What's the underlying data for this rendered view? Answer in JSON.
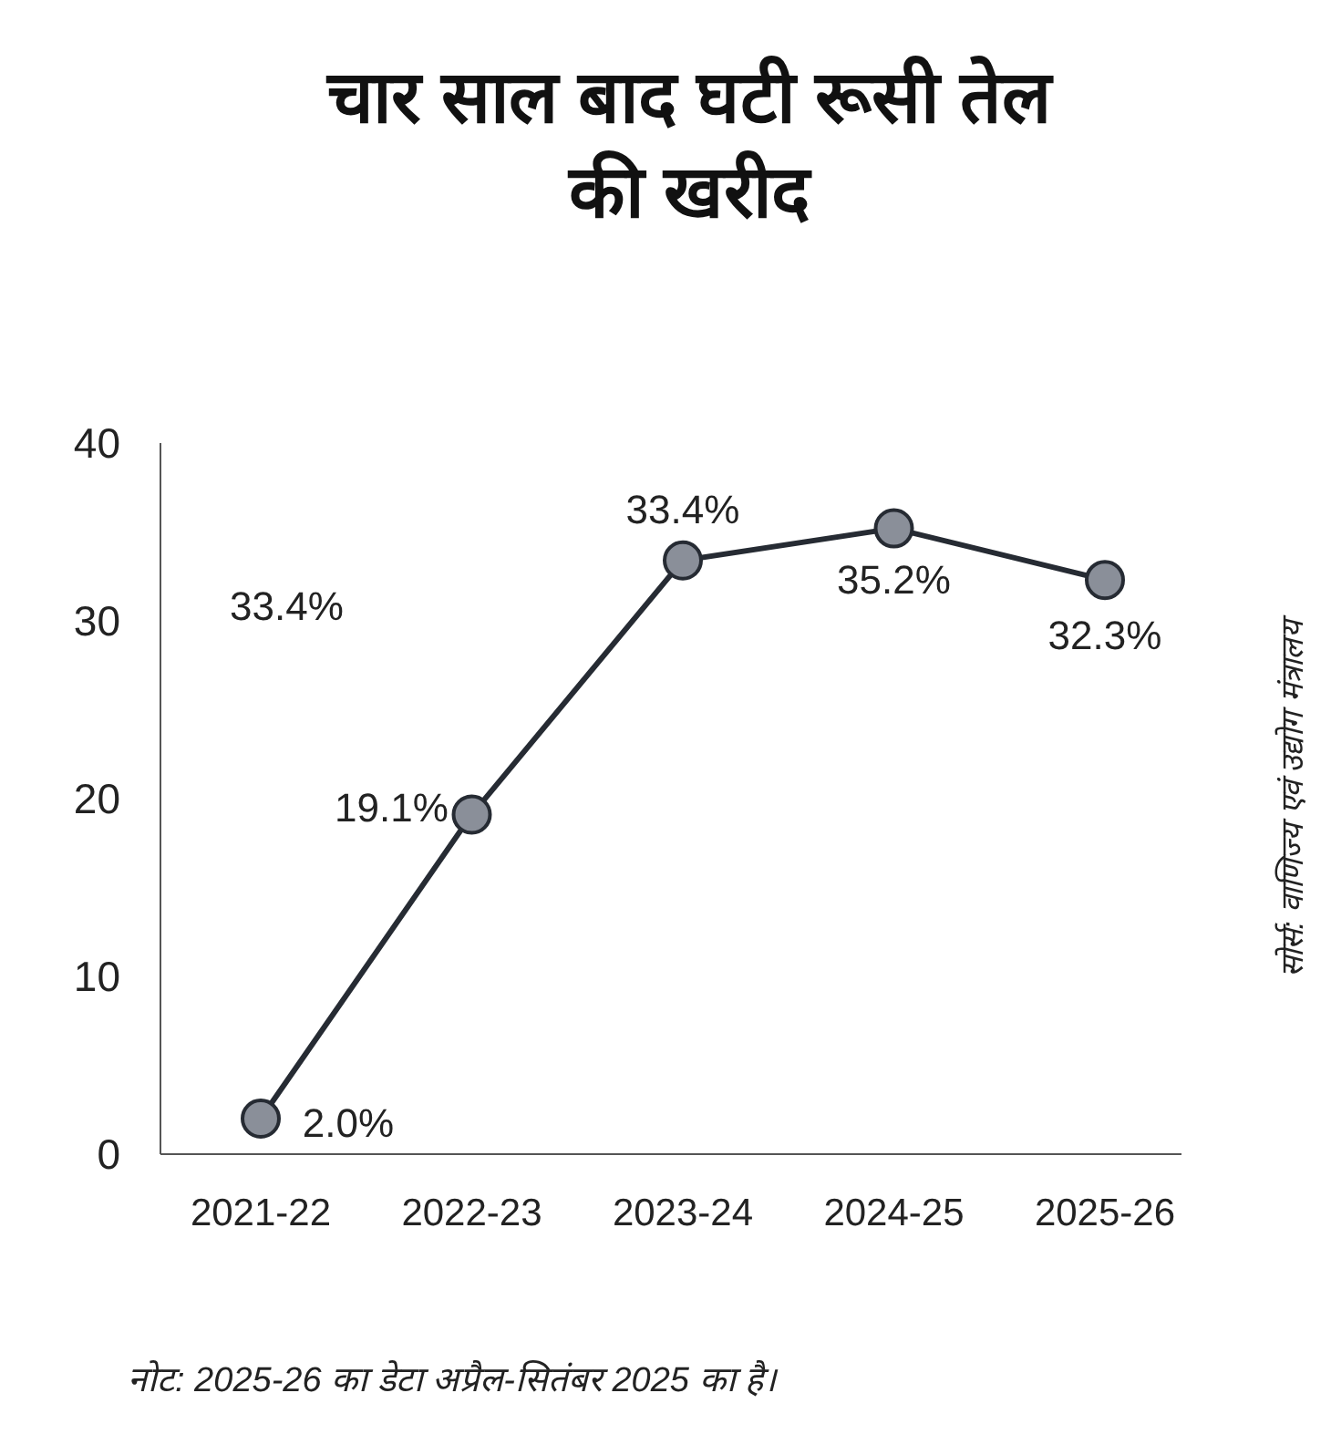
{
  "chart_data": {
    "type": "line",
    "title": "चार साल बाद घटी रूसी तेल की खरीद",
    "categories": [
      "2021-22",
      "2022-23",
      "2023-24",
      "2024-25",
      "2025-26"
    ],
    "values": [
      2.0,
      19.1,
      33.4,
      35.2,
      32.3
    ],
    "value_labels": [
      "2.0%",
      "19.1%",
      "33.4%",
      "35.2%",
      "32.3%"
    ],
    "color": "#262b33",
    "marker": "circle",
    "line_style": "solid",
    "grid": false,
    "ylim": [
      0,
      40
    ],
    "yticks": [
      0,
      10,
      20,
      30,
      40
    ],
    "annotations": [
      "33.4%",
      "सोर्स: वाणिज्य एवं उद्योग मंत्रालय",
      "नोट: 2025-26 का डेटा अप्रैल-सितंबर 2025 का है।"
    ]
  }
}
